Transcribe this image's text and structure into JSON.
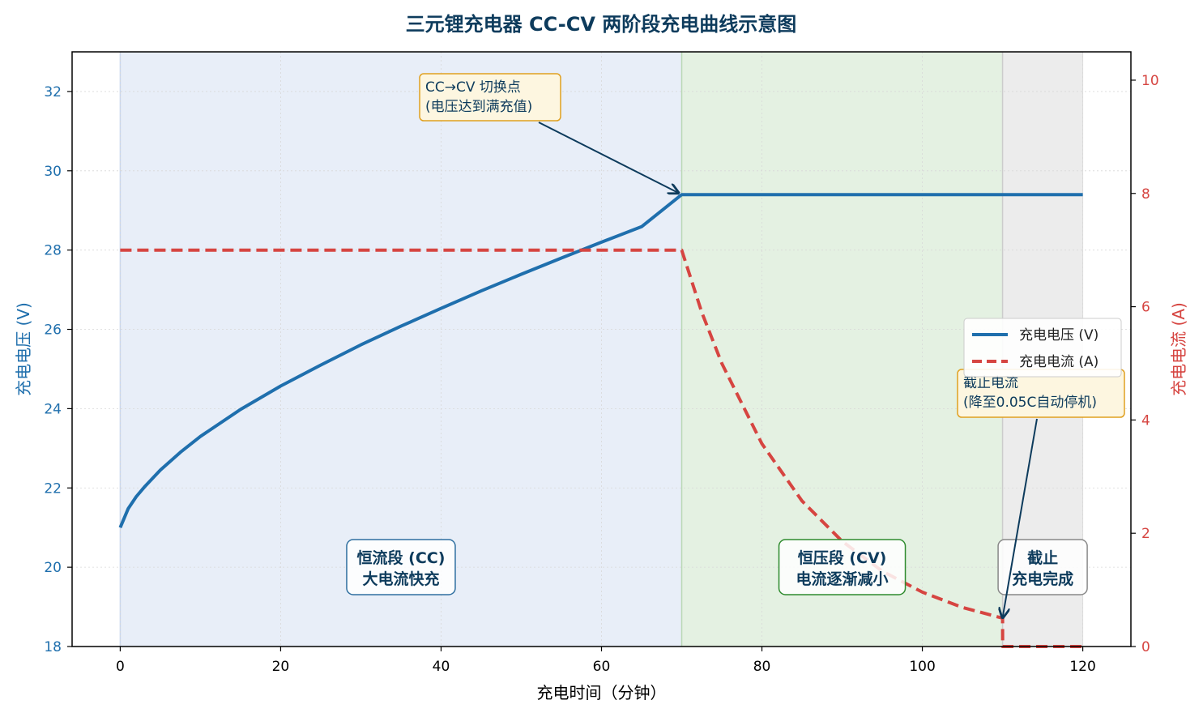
{
  "chart_data": {
    "type": "line",
    "title": "三元锂充电器 CC-CV 两阶段充电曲线示意图",
    "xlabel": "充电时间（分钟）",
    "ylabel_left": "充电电压 (V)",
    "ylabel_right": "充电电流 (A)",
    "xlim": [
      -6,
      126
    ],
    "ylim_left": [
      18,
      33
    ],
    "ylim_right": [
      0,
      10.5
    ],
    "x_ticks": [
      0,
      20,
      40,
      60,
      80,
      100,
      120
    ],
    "y_left_ticks": [
      18,
      20,
      22,
      24,
      26,
      28,
      30,
      32
    ],
    "y_right_ticks": [
      0,
      2,
      4,
      6,
      8,
      10
    ],
    "grid": true,
    "legend_position": "center-right",
    "colors": {
      "voltage": "#1f6fad",
      "current": "#d64541",
      "cc_region": "#e8eef8",
      "cv_region": "#e4f1e2",
      "cutoff_region": "#ececec",
      "annotation_border": "#e0a020",
      "annotation_fill": "#fdf6e0",
      "arrow": "#0d3b5c",
      "title": "#0d3b5c"
    },
    "series": [
      {
        "name": "充电电压 (V)",
        "axis": "left",
        "style": "solid",
        "x": [
          0,
          1,
          2,
          3,
          5,
          7.5,
          10,
          15,
          20,
          25,
          30,
          35,
          40,
          45,
          50,
          55,
          60,
          65,
          70,
          80,
          90,
          100,
          110,
          120
        ],
        "values": [
          21.0,
          21.48,
          21.78,
          22.02,
          22.45,
          22.9,
          23.3,
          23.98,
          24.57,
          25.1,
          25.61,
          26.08,
          26.53,
          26.97,
          27.39,
          27.8,
          28.2,
          28.59,
          29.4,
          29.4,
          29.4,
          29.4,
          29.4,
          29.4
        ]
      },
      {
        "name": "充电电流 (A)",
        "axis": "right",
        "style": "dashed",
        "x": [
          0,
          10,
          20,
          30,
          40,
          50,
          60,
          70,
          72.5,
          75,
          80,
          85,
          90,
          95,
          100,
          105,
          110,
          110.01,
          115,
          120
        ],
        "values": [
          7.0,
          7.0,
          7.0,
          7.0,
          7.0,
          7.0,
          7.0,
          7.0,
          5.9,
          5.0,
          3.58,
          2.57,
          1.86,
          1.33,
          0.96,
          0.69,
          0.5,
          0.0,
          0.0,
          0.0
        ]
      }
    ],
    "regions": [
      {
        "label_line1": "恒流段 (CC)",
        "label_line2": "大电流快充",
        "x_start": 0,
        "x_end": 70
      },
      {
        "label_line1": "恒压段 (CV)",
        "label_line2": "电流逐渐减小",
        "x_start": 70,
        "x_end": 110
      },
      {
        "label_line1": "截止",
        "label_line2": "充电完成",
        "x_start": 110,
        "x_end": 120
      }
    ],
    "annotations": [
      {
        "line1": "CC→CV 切换点",
        "line2": "(电压达到满充值)",
        "target_x": 70,
        "target_y_left": 29.4
      },
      {
        "line1": "截止电流",
        "line2": "(降至0.05C自动停机)",
        "target_x": 110,
        "target_y_right": 0.45
      }
    ]
  }
}
